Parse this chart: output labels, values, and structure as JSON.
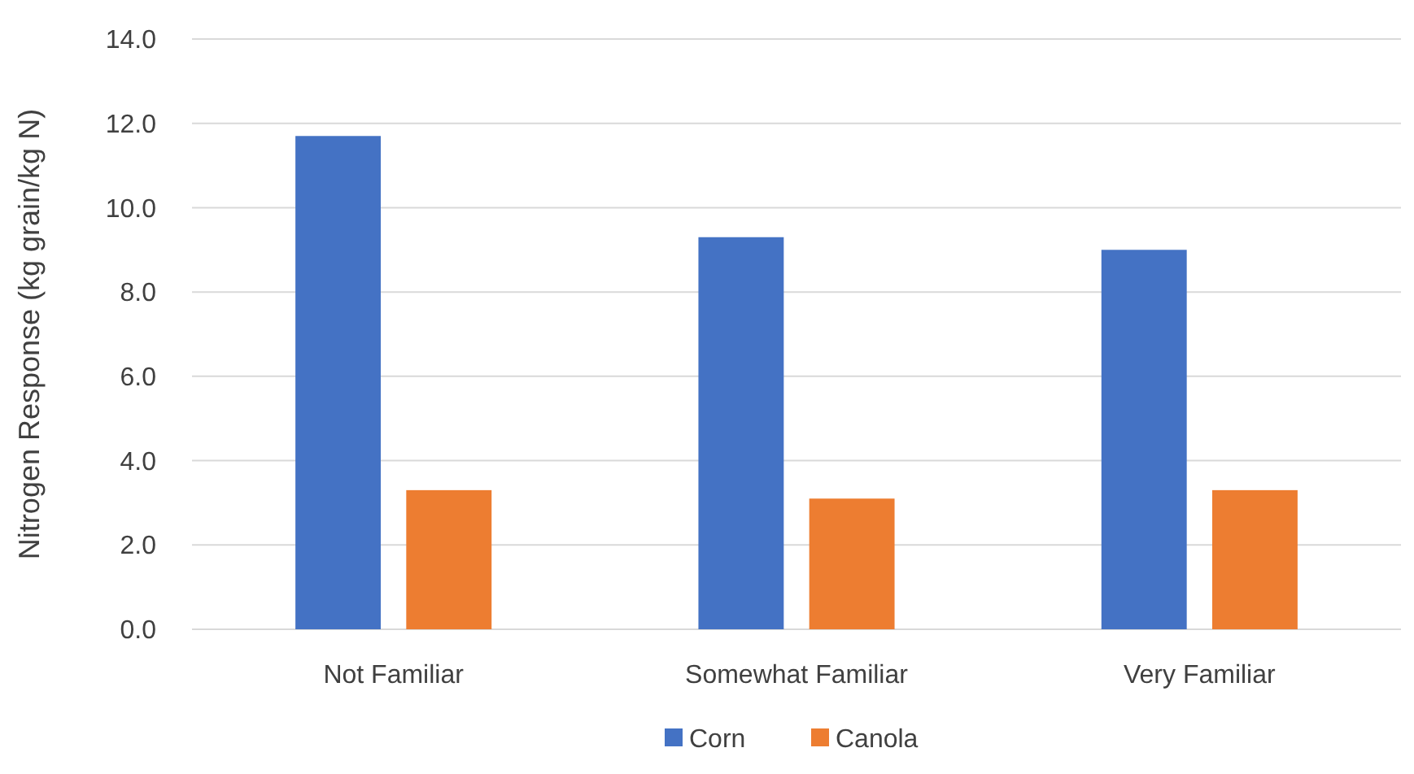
{
  "chart_data": {
    "type": "bar",
    "ylabel": "Nitrogen Response (kg grain/kg N)",
    "categories": [
      "Not Familiar",
      "Somewhat Familiar",
      "Very Familiar"
    ],
    "series": [
      {
        "name": "Corn",
        "color": "#4472c4",
        "values": [
          11.7,
          9.3,
          9.0
        ]
      },
      {
        "name": "Canola",
        "color": "#ed7d31",
        "values": [
          3.3,
          3.1,
          3.3
        ]
      }
    ],
    "ylim": [
      0,
      14
    ],
    "yticks": [
      {
        "value": 0,
        "label": "0.0"
      },
      {
        "value": 2,
        "label": "2.0"
      },
      {
        "value": 4,
        "label": "4.0"
      },
      {
        "value": 6,
        "label": "6.0"
      },
      {
        "value": 8,
        "label": "8.0"
      },
      {
        "value": 10,
        "label": "10.0"
      },
      {
        "value": 12,
        "label": "12.0"
      },
      {
        "value": 14,
        "label": "14.0"
      }
    ],
    "grid": "y",
    "legend": "bottom"
  }
}
